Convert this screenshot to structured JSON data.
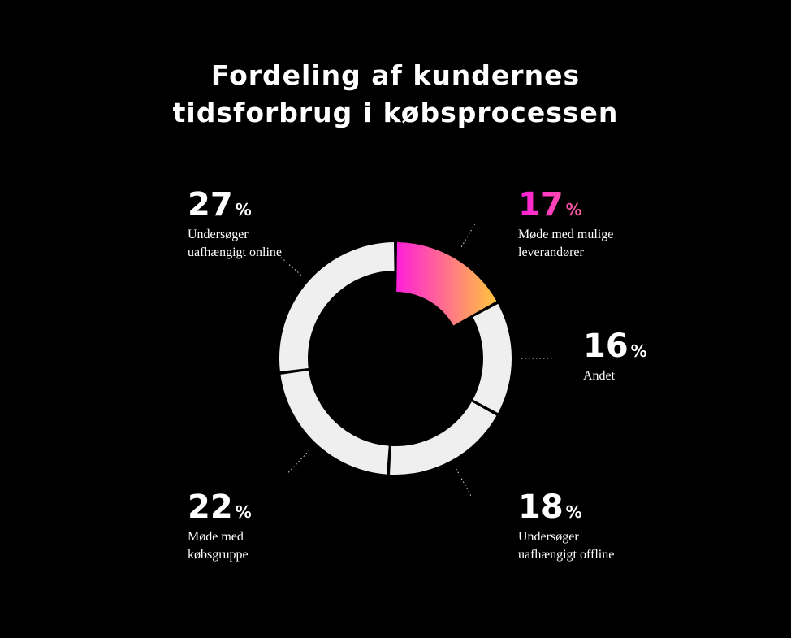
{
  "title_line1": "Fordeling af kundernes",
  "title_line2": "tidsforbrug i købsprocessen",
  "chart_data": {
    "type": "pie",
    "donut": true,
    "title": "Fordeling af kundernes tidsforbrug i købsprocessen",
    "unit": "%",
    "slices": [
      {
        "label": "Møde med mulige leverandører",
        "line1": "Møde med mulige",
        "line2": "leverandører",
        "value": 17,
        "highlight": true
      },
      {
        "label": "Andet",
        "line1": "Andet",
        "line2": "",
        "value": 16
      },
      {
        "label": "Undersøger uafhængigt offline",
        "line1": "Undersøger",
        "line2": "uafhængigt offline",
        "value": 18
      },
      {
        "label": "Møde med købsgruppe",
        "line1": "Møde med",
        "line2": "købsgruppe",
        "value": 22
      },
      {
        "label": "Undersøger uafhængigt online",
        "line1": "Undersøger",
        "line2": "uafhængigt online",
        "value": 27
      }
    ],
    "colors": {
      "default": "#efefef",
      "highlight_start": "#ff1fd9",
      "highlight_end": "#ffc53d"
    }
  }
}
